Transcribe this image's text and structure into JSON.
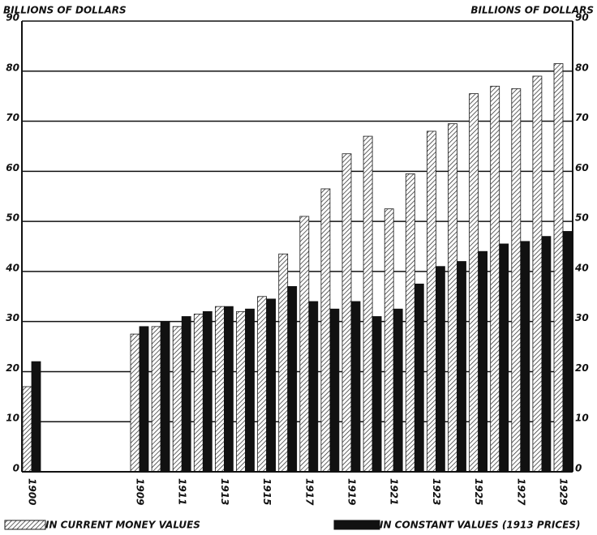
{
  "chart_data": {
    "type": "bar",
    "y_label": "BILLIONS OF DOLLARS",
    "y2_label": "BILLIONS OF DOLLARS",
    "categories": [
      "1900",
      "1909",
      null,
      "1911",
      null,
      "1913",
      null,
      "1915",
      null,
      "1917",
      null,
      "1919",
      null,
      "1921",
      null,
      "1923",
      null,
      "1925",
      null,
      "1927",
      null,
      "1929"
    ],
    "series": [
      {
        "name": "IN CURRENT MONEY VALUES",
        "color": "#1a1a1a",
        "pattern": "hatch",
        "values": [
          17,
          27.5,
          29,
          29,
          31.5,
          33,
          32,
          35,
          43.5,
          51,
          56.5,
          63.5,
          67,
          52.5,
          59.5,
          68,
          69.5,
          75.5,
          77,
          76.5,
          79,
          81.5
        ]
      },
      {
        "name": "IN CONSTANT VALUES (1913 PRICES)",
        "color": "#111111",
        "pattern": "solid",
        "values": [
          22,
          29,
          30,
          31,
          32,
          33,
          32.5,
          34.5,
          37,
          34,
          32.5,
          34,
          31,
          32.5,
          37.5,
          41,
          42,
          44,
          45.5,
          46,
          47,
          48
        ]
      }
    ],
    "ylim": [
      0,
      90
    ],
    "yticks": [
      0,
      10,
      20,
      30,
      40,
      50,
      60,
      70,
      80,
      90
    ],
    "grid": true
  }
}
